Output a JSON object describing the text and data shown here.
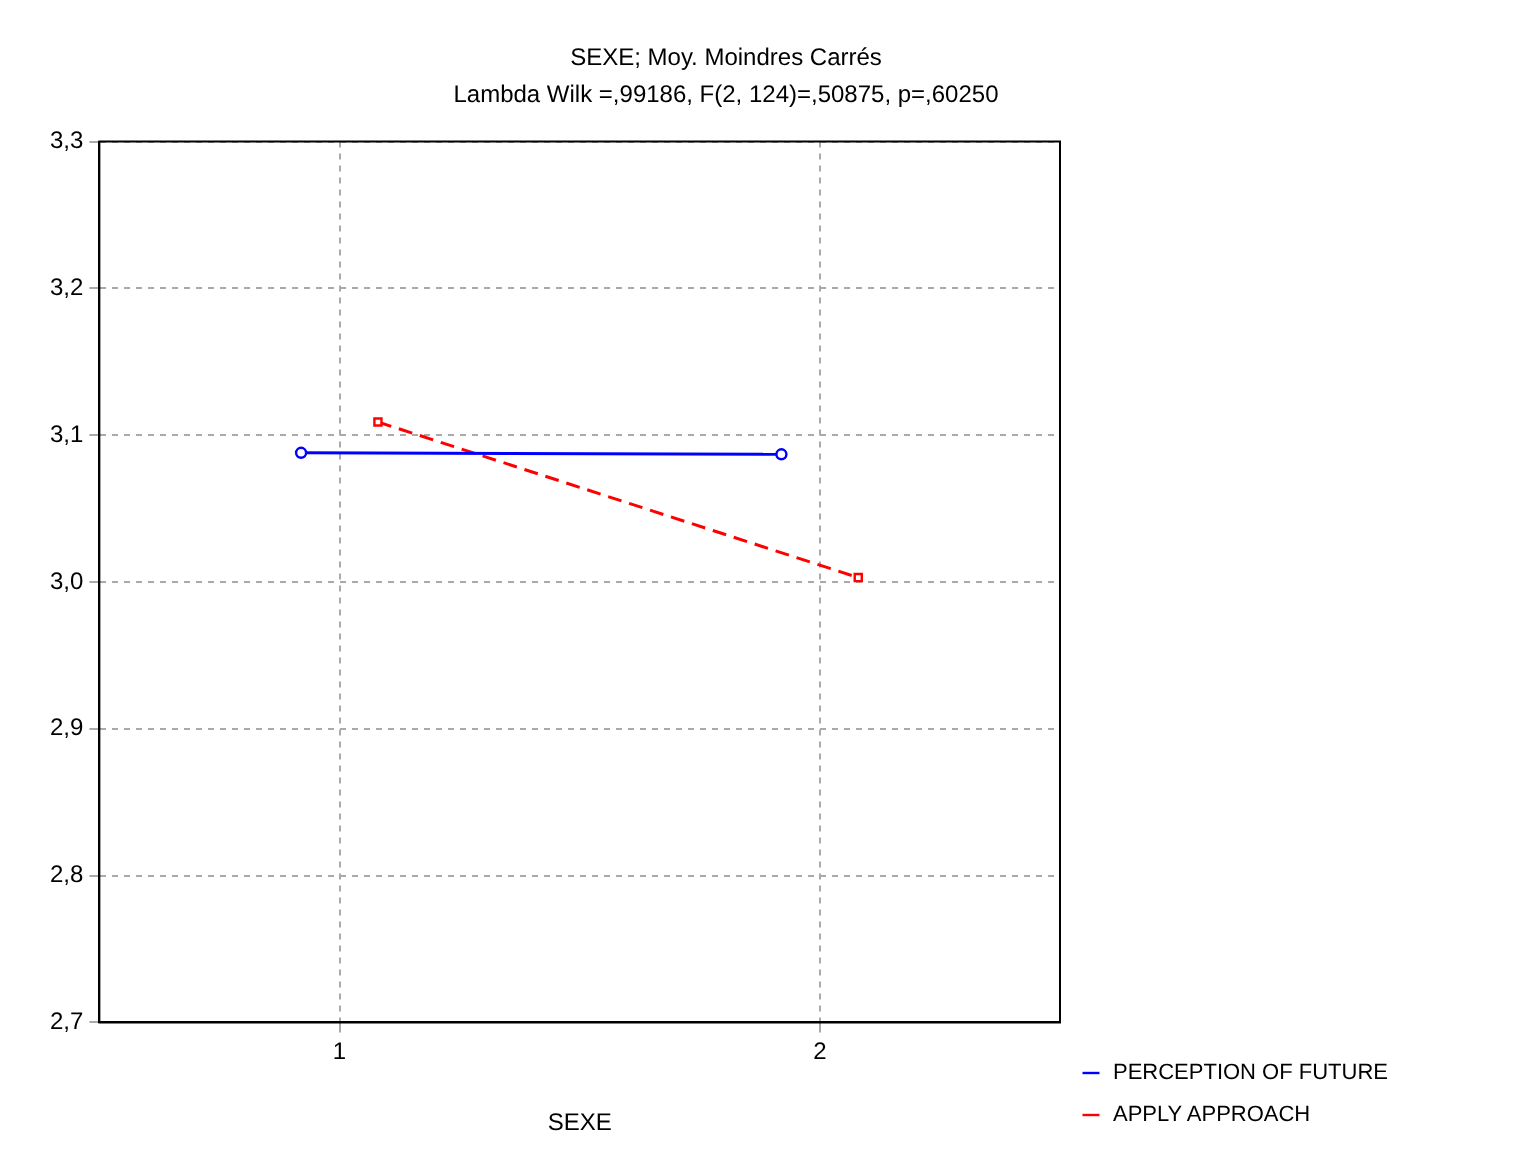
{
  "chart_data": {
    "type": "line",
    "title": "SEXE; Moy. Moindres Carrés",
    "subtitle": "Lambda Wilk =,99186, F(2, 124)=,50875, p=,60250",
    "xlabel": "SEXE",
    "xlim": [
      0.5,
      2.5
    ],
    "xticks": [
      1,
      2
    ],
    "ylim": [
      2.7,
      3.3
    ],
    "yticks": [
      {
        "value": 2.7,
        "label": "2,7"
      },
      {
        "value": 2.8,
        "label": "2,8"
      },
      {
        "value": 2.9,
        "label": "2,9"
      },
      {
        "value": 3.0,
        "label": "3,0"
      },
      {
        "value": 3.1,
        "label": "3,1"
      },
      {
        "value": 3.2,
        "label": "3,2"
      },
      {
        "value": 3.3,
        "label": "3,3"
      }
    ],
    "grid": true,
    "legend": "bottom right",
    "series": [
      {
        "name": "PERCEPTION OF FUTURE",
        "color": "#0000ff",
        "x": [
          0.92,
          1.92
        ],
        "values": [
          3.088,
          3.087
        ],
        "marker": "circle",
        "line_style": "solid"
      },
      {
        "name": "APPLY APPROACH",
        "color": "#ff0000",
        "x": [
          1.08,
          2.08
        ],
        "values": [
          3.109,
          3.003
        ],
        "marker": "square",
        "line_style": "dashed"
      }
    ]
  }
}
